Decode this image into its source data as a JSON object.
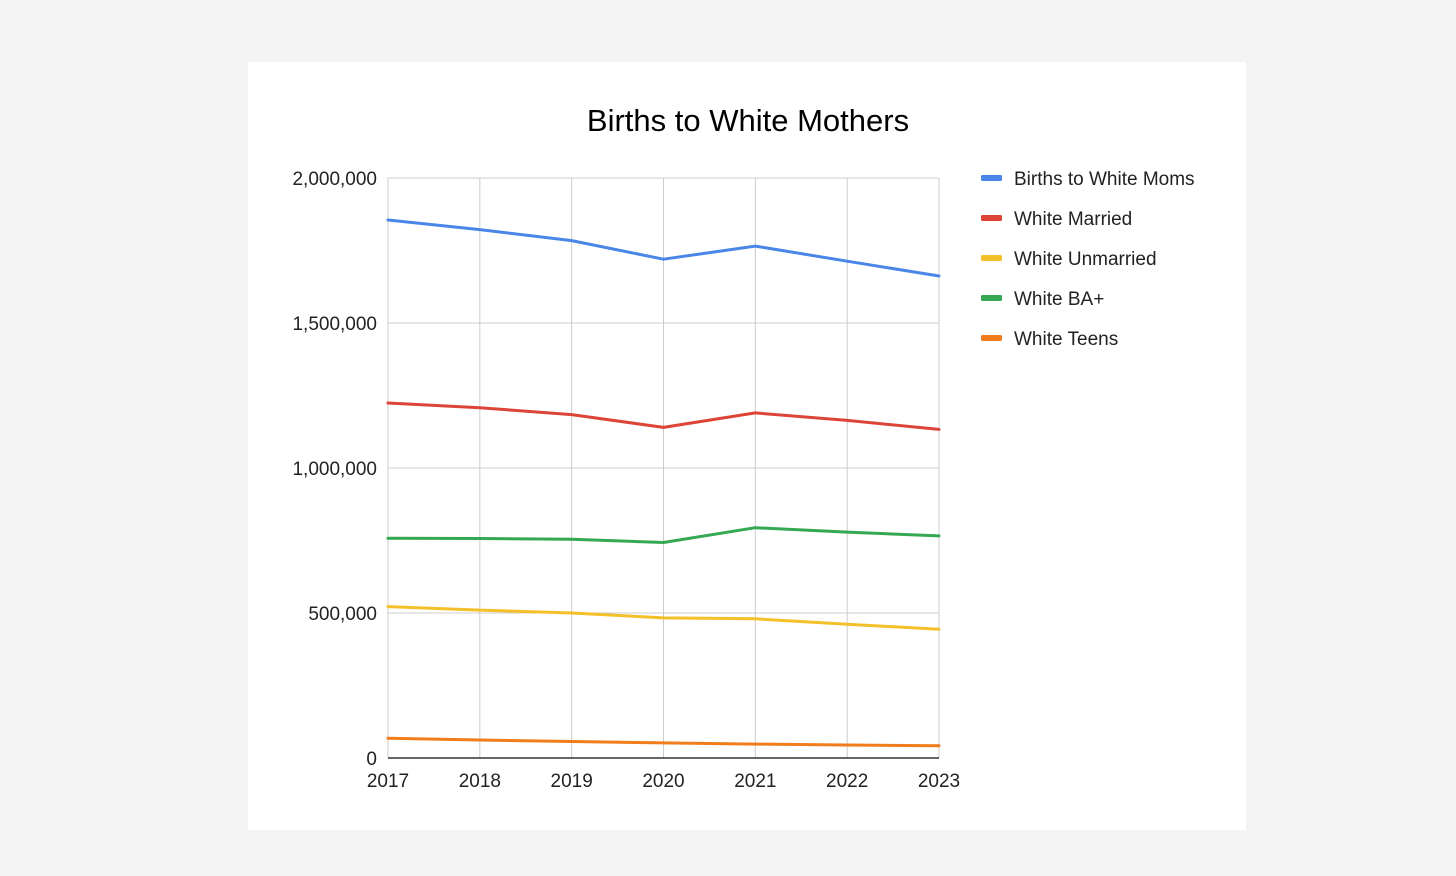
{
  "chart_data": {
    "type": "line",
    "title": "Births to White Mothers",
    "xlabel": "",
    "ylabel": "",
    "x": [
      "2017",
      "2018",
      "2019",
      "2020",
      "2021",
      "2022",
      "2023"
    ],
    "ylim": [
      0,
      2000000
    ],
    "yticks": [
      "0",
      "500,000",
      "1,000,000",
      "1,500,000",
      "2,000,000"
    ],
    "ytick_values": [
      0,
      500000,
      1000000,
      1500000,
      2000000
    ],
    "grid": true,
    "legend_position": "right",
    "series": [
      {
        "name": "Births to White Moms",
        "color": "#4a86e8",
        "values": [
          1855000,
          1822000,
          1784000,
          1720000,
          1765000,
          1713000,
          1662000
        ]
      },
      {
        "name": "White Married",
        "color": "#dc4437",
        "values": [
          1224000,
          1208000,
          1184000,
          1140000,
          1190000,
          1164000,
          1133000
        ]
      },
      {
        "name": "White Unmarried",
        "color": "#f4c029",
        "values": [
          522000,
          510000,
          500000,
          483000,
          480000,
          461000,
          444000
        ]
      },
      {
        "name": "White BA+",
        "color": "#34a853",
        "values": [
          758000,
          757000,
          754000,
          743000,
          794000,
          779000,
          766000
        ]
      },
      {
        "name": "White Teens",
        "color": "#f07c1c",
        "values": [
          68000,
          62000,
          57000,
          52000,
          48000,
          45000,
          42000
        ]
      }
    ]
  }
}
